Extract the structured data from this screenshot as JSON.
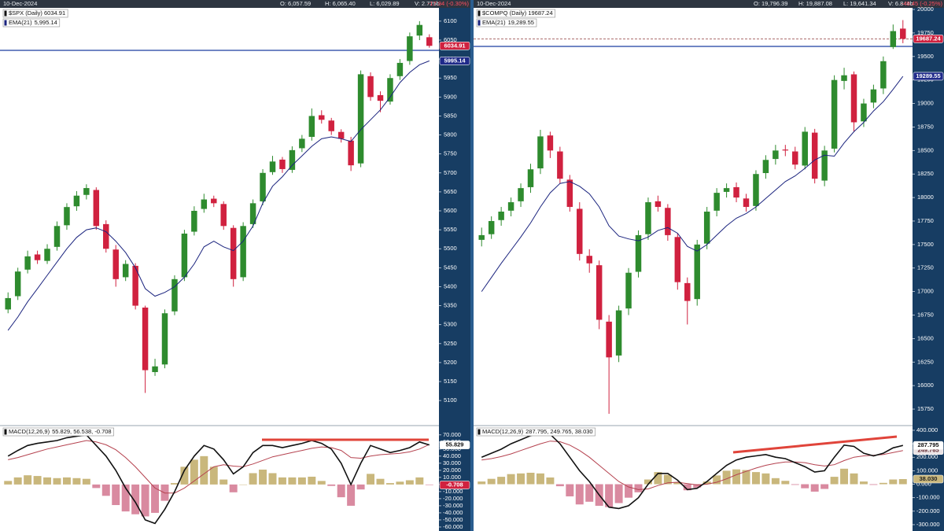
{
  "chart_data": [
    {
      "type": "candlestick",
      "date": "10-Dec-2024",
      "header_stats": [
        "O: 6,057.59",
        "H: 6,065.40",
        "L: 6,029.89",
        "V: 2.725b"
      ],
      "change": "-17.94 (-0.30%)",
      "title": "$SPX (Daily) 6034.91",
      "last_label": "6034.91",
      "up_color": "#2e8b2e",
      "down_color": "#d0213f",
      "price_line": false,
      "grid": false,
      "ylim": [
        5036,
        6135
      ],
      "yticks": [
        5100,
        5150,
        5200,
        5250,
        5300,
        5350,
        5400,
        5450,
        5500,
        5550,
        5600,
        5650,
        5700,
        5750,
        5800,
        5850,
        5900,
        5950,
        6000,
        6050,
        6100
      ],
      "open": [
        5340,
        5375,
        5445,
        5485,
        5468,
        5505,
        5562,
        5612,
        5642,
        5655,
        5565,
        5498,
        5425,
        5455,
        5345,
        5175,
        5195,
        5335,
        5425,
        5545,
        5605,
        5632,
        5618,
        5555,
        5425,
        5565,
        5625,
        5702,
        5735,
        5708,
        5765,
        5795,
        5852,
        5838,
        5808,
        5785,
        5725,
        5955,
        5905,
        5888,
        5955,
        5995,
        6062,
        6057.59
      ],
      "high": [
        5385,
        5450,
        5495,
        5495,
        5512,
        5572,
        5620,
        5652,
        5670,
        5662,
        5575,
        5510,
        5470,
        5462,
        5350,
        5210,
        5340,
        5430,
        5550,
        5612,
        5645,
        5640,
        5625,
        5562,
        5570,
        5630,
        5710,
        5745,
        5742,
        5770,
        5800,
        5870,
        5865,
        5845,
        5815,
        5795,
        5970,
        5965,
        5915,
        5960,
        6000,
        6070,
        6100,
        6065.4
      ],
      "low": [
        5330,
        5365,
        5435,
        5460,
        5460,
        5495,
        5550,
        5600,
        5630,
        5550,
        5490,
        5400,
        5415,
        5340,
        5120,
        5165,
        5185,
        5325,
        5415,
        5535,
        5595,
        5610,
        5550,
        5400,
        5415,
        5555,
        5615,
        5695,
        5700,
        5700,
        5755,
        5785,
        5830,
        5800,
        5780,
        5705,
        5715,
        5890,
        5860,
        5880,
        5945,
        5985,
        6050,
        6029.89
      ],
      "close": [
        5370,
        5440,
        5480,
        5470,
        5500,
        5560,
        5610,
        5640,
        5660,
        5560,
        5500,
        5420,
        5460,
        5350,
        5180,
        5190,
        5330,
        5420,
        5540,
        5600,
        5630,
        5620,
        5560,
        5420,
        5560,
        5620,
        5700,
        5730,
        5710,
        5760,
        5790,
        5850,
        5840,
        5810,
        5790,
        5720,
        5960,
        5900,
        5890,
        5950,
        5990,
        6060,
        6090,
        6034.91
      ],
      "series": [
        {
          "name": "EMA(21)",
          "legend_value": "5,995.14",
          "last_label": "5995.14",
          "color": "#1a237e",
          "values": [
            5285,
            5320,
            5360,
            5395,
            5430,
            5465,
            5500,
            5530,
            5550,
            5555,
            5545,
            5520,
            5490,
            5450,
            5395,
            5375,
            5385,
            5400,
            5425,
            5460,
            5505,
            5520,
            5505,
            5495,
            5520,
            5560,
            5620,
            5665,
            5690,
            5720,
            5745,
            5770,
            5790,
            5795,
            5790,
            5783,
            5814,
            5840,
            5866,
            5900,
            5938,
            5965,
            5985,
            5995.14
          ]
        }
      ],
      "levels": [
        {
          "value": 6023,
          "color": "#1a3fa0"
        }
      ],
      "macd": {
        "name": "MACD(12,26,9)",
        "legend_values": "55.829, 56.538, -0.708",
        "ylim": [
          -65.6,
          82
        ],
        "yticks": [
          {
            "value": 70,
            "label": "70.000"
          },
          {
            "value": 60,
            "label": "60.000"
          },
          {
            "value": 50,
            "label": "50.000"
          },
          {
            "value": 40,
            "label": "40.000"
          },
          {
            "value": 30,
            "label": "30.000"
          },
          {
            "value": 20,
            "label": "20.000"
          },
          {
            "value": 10,
            "label": "10.000"
          },
          {
            "value": 0,
            "label": "0.000"
          },
          {
            "value": -10,
            "label": "-10.000"
          },
          {
            "value": -20,
            "label": "-20.000"
          },
          {
            "value": -30,
            "label": "-30.000"
          },
          {
            "value": -40,
            "label": "-40.000"
          },
          {
            "value": -50,
            "label": "-50.000"
          },
          {
            "value": -60,
            "label": "-60.000"
          }
        ],
        "line": {
          "color": "#111111",
          "last_label": "55.829",
          "values": [
            40,
            48,
            55,
            58,
            60,
            62,
            66,
            68,
            70,
            55,
            40,
            20,
            -5,
            -25,
            -50,
            -55,
            -35,
            -10,
            20,
            40,
            55,
            50,
            35,
            15,
            25,
            45,
            55,
            55,
            52,
            55,
            58,
            62,
            58,
            50,
            30,
            0,
            30,
            55,
            50,
            45,
            48,
            52,
            60,
            55.829
          ]
        },
        "signal": {
          "color": "#b5424f",
          "values": [
            35,
            38,
            42,
            46,
            50,
            53,
            56,
            59,
            62,
            60,
            56,
            49,
            38,
            25,
            10,
            -5,
            -12,
            -12,
            -5,
            5,
            15,
            25,
            28,
            26,
            25,
            29,
            34,
            39,
            42,
            45,
            48,
            51,
            53,
            52,
            48,
            38,
            37,
            40,
            42,
            43,
            44,
            46,
            50,
            56.538
          ]
        },
        "histogram": {
          "up_color": "#c9b77c",
          "down_color": "#d98aa0",
          "last_label": "-0.708",
          "values": [
            5,
            10,
            13,
            12,
            10,
            9,
            10,
            9,
            8,
            -5,
            -16,
            -29,
            -38,
            -42,
            -45,
            -40,
            -23,
            2,
            25,
            35,
            40,
            25,
            7,
            -11,
            0,
            16,
            21,
            16,
            10,
            10,
            10,
            11,
            5,
            -2,
            -18,
            -30,
            -7,
            15,
            8,
            2,
            4,
            6,
            10,
            -0.708
          ]
        }
      }
    },
    {
      "type": "candlestick",
      "date": "10-Dec-2024",
      "header_stats": [
        "O: 19,796.39",
        "H: 19,887.08",
        "L: 19,641.34",
        "V: 6.844b"
      ],
      "change": "-49.45 (-0.25%)",
      "title": "$COMPQ (Daily) 19687.24",
      "last_label": "19687.24",
      "up_color": "#2e8b2e",
      "down_color": "#d0213f",
      "price_line": true,
      "grid": false,
      "ylim": [
        15583,
        20017
      ],
      "yticks": [
        15750,
        16000,
        16250,
        16500,
        16750,
        17000,
        17250,
        17500,
        17750,
        18000,
        18250,
        18500,
        18750,
        19000,
        19250,
        19500,
        19750,
        20000
      ],
      "open": [
        17550,
        17610,
        17760,
        17860,
        17960,
        18110,
        18310,
        18660,
        18490,
        18190,
        17880,
        17380,
        17280,
        16680,
        16320,
        16820,
        17210,
        17610,
        17960,
        17890,
        17580,
        17090,
        16920,
        17510,
        17860,
        18060,
        18110,
        17990,
        17910,
        18260,
        18410,
        18510,
        18490,
        18340,
        18690,
        18180,
        18520,
        19240,
        19310,
        18810,
        19010,
        19160,
        19600,
        19796.39
      ],
      "high": [
        17680,
        17800,
        17900,
        18000,
        18150,
        18360,
        18720,
        18700,
        18540,
        18240,
        17950,
        17450,
        17330,
        16750,
        16850,
        17250,
        17650,
        18000,
        18020,
        17930,
        17620,
        17150,
        17550,
        17900,
        18100,
        18150,
        18160,
        18040,
        18290,
        18450,
        18560,
        18560,
        18540,
        18750,
        18730,
        18550,
        19300,
        19380,
        19340,
        19050,
        19200,
        19500,
        19840,
        19887.08
      ],
      "low": [
        17480,
        17560,
        17700,
        17800,
        17900,
        18050,
        18250,
        18420,
        18150,
        17850,
        17330,
        17200,
        16600,
        15700,
        16250,
        16750,
        17150,
        17550,
        17850,
        17540,
        17020,
        16650,
        16850,
        17450,
        17800,
        18000,
        17950,
        17850,
        17860,
        18200,
        18350,
        18440,
        18300,
        18300,
        18150,
        18120,
        18480,
        19150,
        18700,
        18750,
        18950,
        19100,
        19580,
        19641.34
      ],
      "close": [
        17600,
        17750,
        17850,
        17950,
        18100,
        18300,
        18650,
        18500,
        18200,
        17900,
        17400,
        17300,
        16700,
        16300,
        16800,
        17200,
        17600,
        17950,
        17900,
        17600,
        17100,
        16900,
        17500,
        17850,
        18050,
        18100,
        18000,
        17900,
        18250,
        18400,
        18500,
        18500,
        18350,
        18700,
        18200,
        18500,
        19250,
        19300,
        18800,
        19000,
        19150,
        19450,
        19770,
        19687.24
      ],
      "series": [
        {
          "name": "EMA(21)",
          "legend_value": "19,289.55",
          "last_label": "19289.55",
          "color": "#1a237e",
          "values": [
            17000,
            17150,
            17300,
            17440,
            17580,
            17730,
            17900,
            18050,
            18150,
            18170,
            18120,
            18040,
            17900,
            17700,
            17590,
            17560,
            17540,
            17580,
            17650,
            17680,
            17620,
            17480,
            17430,
            17500,
            17600,
            17700,
            17780,
            17830,
            17900,
            17990,
            18080,
            18170,
            18230,
            18310,
            18400,
            18450,
            18440,
            18580,
            18700,
            18800,
            18920,
            19020,
            19150,
            19289.55
          ]
        }
      ],
      "levels": [
        {
          "value": 19607,
          "color": "#1a3fa0"
        }
      ],
      "macd": {
        "name": "MACD(12,26,9)",
        "legend_values": "287.795, 249.765, 38.030",
        "ylim": [
          -347,
          429
        ],
        "yticks": [
          {
            "value": 400,
            "label": "400.000"
          },
          {
            "value": 300,
            "label": "300.000"
          },
          {
            "value": 200,
            "label": "200.000"
          },
          {
            "value": 100,
            "label": "100.000"
          },
          {
            "value": 0,
            "label": "0.000"
          },
          {
            "value": -100,
            "label": "-100.000"
          },
          {
            "value": -200,
            "label": "-200.000"
          },
          {
            "value": -300,
            "label": "-300.000"
          }
        ],
        "line": {
          "color": "#111111",
          "last_label": "287.795",
          "values": [
            200,
            230,
            260,
            300,
            330,
            360,
            380,
            370,
            300,
            200,
            100,
            20,
            -80,
            -170,
            -180,
            -160,
            -100,
            0,
            80,
            80,
            30,
            -40,
            -30,
            20,
            80,
            140,
            180,
            200,
            210,
            220,
            200,
            190,
            160,
            130,
            90,
            100,
            200,
            290,
            280,
            230,
            210,
            230,
            270,
            287.795
          ]
        },
        "signal": {
          "color": "#b5424f",
          "last_label": "249.765",
          "values": [
            180,
            190,
            205,
            225,
            250,
            275,
            300,
            320,
            315,
            290,
            250,
            200,
            140,
            80,
            20,
            -20,
            -40,
            -35,
            -10,
            10,
            15,
            5,
            -5,
            0,
            15,
            40,
            70,
            95,
            120,
            140,
            155,
            165,
            165,
            160,
            145,
            135,
            145,
            175,
            200,
            210,
            215,
            220,
            235,
            249.765
          ]
        },
        "histogram": {
          "up_color": "#c9b77c",
          "down_color": "#d98aa0",
          "last_label": "38.030",
          "values": [
            20,
            40,
            55,
            75,
            80,
            85,
            80,
            50,
            -15,
            -90,
            -150,
            -130,
            -160,
            -170,
            -140,
            -100,
            -60,
            35,
            90,
            70,
            15,
            -45,
            -25,
            20,
            65,
            100,
            110,
            105,
            90,
            80,
            45,
            25,
            -5,
            -30,
            -55,
            -35,
            55,
            115,
            80,
            20,
            -5,
            10,
            35,
            38.03
          ]
        }
      }
    }
  ]
}
